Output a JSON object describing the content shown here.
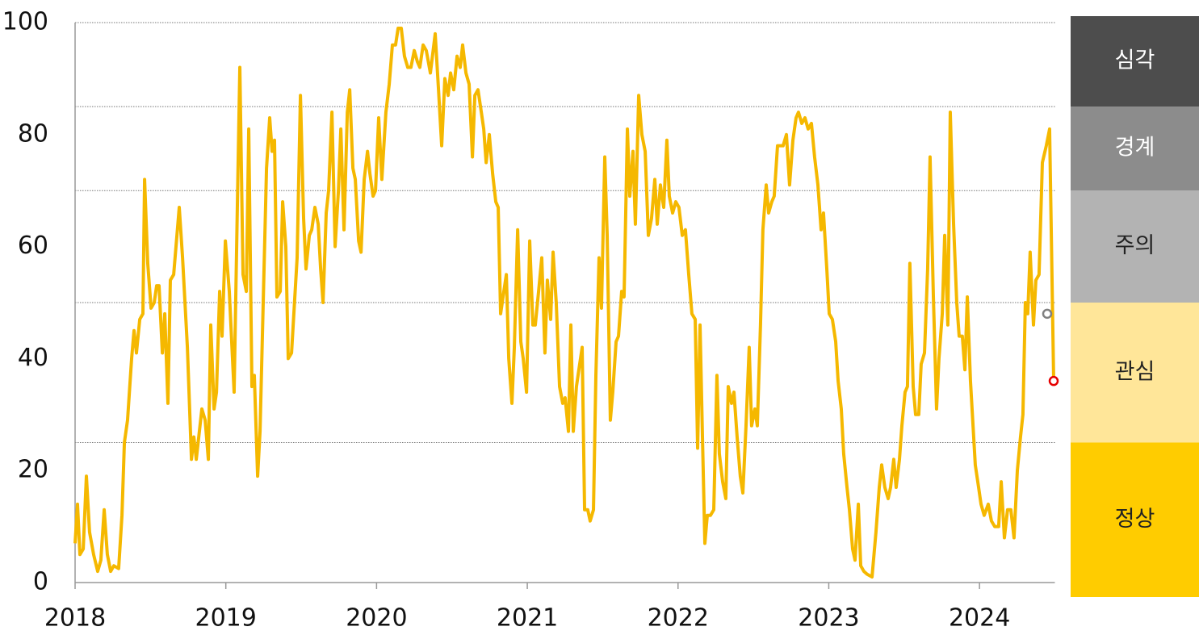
{
  "chart_data": {
    "type": "line",
    "color": "#f5b800",
    "x": [
      2018.0,
      2018.016,
      2018.032,
      2018.054,
      2018.075,
      2018.096,
      2018.123,
      2018.15,
      2018.171,
      2018.193,
      2018.214,
      2018.236,
      2018.257,
      2018.289,
      2018.311,
      2018.327,
      2018.348,
      2018.375,
      2018.391,
      2018.407,
      2018.429,
      2018.45,
      2018.461,
      2018.482,
      2018.504,
      2018.525,
      2018.541,
      2018.557,
      2018.579,
      2018.595,
      2018.616,
      2018.632,
      2018.654,
      2018.691,
      2018.713,
      2018.745,
      2018.772,
      2018.788,
      2018.804,
      2018.841,
      2018.863,
      2018.884,
      2018.9,
      2018.922,
      2018.938,
      2018.959,
      2018.975,
      2018.997,
      2019.023,
      2019.055,
      2019.077,
      2019.093,
      2019.114,
      2019.136,
      2019.152,
      2019.173,
      2019.189,
      2019.211,
      2019.227,
      2019.27,
      2019.291,
      2019.307,
      2019.323,
      2019.339,
      2019.361,
      2019.377,
      2019.398,
      2019.414,
      2019.436,
      2019.473,
      2019.495,
      2019.516,
      2019.532,
      2019.554,
      2019.57,
      2019.591,
      2019.613,
      2019.629,
      2019.645,
      2019.666,
      2019.682,
      2019.704,
      2019.725,
      2019.747,
      2019.763,
      2019.784,
      2019.806,
      2019.822,
      2019.843,
      2019.859,
      2019.881,
      2019.897,
      2019.918,
      2019.94,
      2019.956,
      2019.977,
      2019.993,
      2020.014,
      2020.035,
      2020.062,
      2020.084,
      2020.105,
      2020.126,
      2020.143,
      2020.164,
      2020.185,
      2020.207,
      2020.228,
      2020.25,
      2020.271,
      2020.287,
      2020.309,
      2020.33,
      2020.357,
      2020.389,
      2020.411,
      2020.432,
      2020.453,
      2020.475,
      2020.491,
      2020.512,
      2020.534,
      2020.555,
      2020.571,
      2020.593,
      2020.614,
      2020.636,
      2020.652,
      2020.673,
      2020.695,
      2020.711,
      2020.727,
      2020.748,
      2020.77,
      2020.791,
      2020.807,
      2020.823,
      2020.839,
      2020.861,
      2020.877,
      2020.898,
      2020.914,
      2020.936,
      2020.957,
      2020.973,
      2020.995,
      2021.016,
      2021.037,
      2021.053,
      2021.075,
      2021.096,
      2021.117,
      2021.133,
      2021.155,
      2021.171,
      2021.192,
      2021.214,
      2021.235,
      2021.251,
      2021.273,
      2021.289,
      2021.305,
      2021.326,
      2021.342,
      2021.364,
      2021.38,
      2021.401,
      2021.417,
      2021.439,
      2021.455,
      2021.476,
      2021.492,
      2021.514,
      2021.53,
      2021.551,
      2021.567,
      2021.589,
      2021.605,
      2021.626,
      2021.642,
      2021.664,
      2021.68,
      2021.701,
      2021.717,
      2021.739,
      2021.76,
      2021.782,
      2021.803,
      2021.824,
      2021.846,
      2021.862,
      2021.883,
      2021.905,
      2021.926,
      2021.942,
      2021.964,
      2021.985,
      2022.006,
      2022.028,
      2022.049,
      2022.071,
      2022.092,
      2022.114,
      2022.13,
      2022.146,
      2022.162,
      2022.178,
      2022.194,
      2022.215,
      2022.237,
      2022.258,
      2022.274,
      2022.296,
      2022.317,
      2022.333,
      2022.355,
      2022.371,
      2022.392,
      2022.413,
      2022.43,
      2022.451,
      2022.472,
      2022.488,
      2022.51,
      2022.526,
      2022.547,
      2022.563,
      2022.585,
      2022.601,
      2022.622,
      2022.638,
      2022.66,
      2022.681,
      2022.697,
      2022.719,
      2022.74,
      2022.762,
      2022.783,
      2022.799,
      2022.821,
      2022.842,
      2022.863,
      2022.885,
      2022.906,
      2022.928,
      2022.949,
      2022.965,
      2022.987,
      2023.003,
      2023.024,
      2023.046,
      2023.062,
      2023.083,
      2023.099,
      2023.121,
      2023.137,
      2023.158,
      2023.174,
      2023.196,
      2023.212,
      2023.233,
      2023.254,
      2023.287,
      2023.313,
      2023.335,
      2023.351,
      2023.372,
      2023.394,
      2023.41,
      2023.431,
      2023.447,
      2023.469,
      2023.485,
      2023.506,
      2023.522,
      2023.538,
      2023.56,
      2023.576,
      2023.597,
      2023.613,
      2023.635,
      2023.656,
      2023.672,
      2023.694,
      2023.715,
      2023.731,
      2023.753,
      2023.769,
      2023.79,
      2023.806,
      2023.828,
      2023.849,
      2023.865,
      2023.886,
      2023.903,
      2023.919,
      2023.94,
      2023.972,
      2023.994,
      2024.01,
      2024.031,
      2024.058,
      2024.079,
      2024.101,
      2024.127,
      2024.144,
      2024.165,
      2024.186,
      2024.208,
      2024.229,
      2024.251,
      2024.272,
      2024.288,
      2024.304,
      2024.32,
      2024.336,
      2024.358,
      2024.374,
      2024.395,
      2024.417,
      2024.443,
      2024.465,
      2024.492
    ],
    "values": [
      7,
      14,
      5,
      6,
      19,
      9,
      5,
      2,
      4,
      13,
      5,
      2,
      3,
      2.5,
      12,
      25,
      29,
      40,
      45,
      41,
      47,
      48,
      72,
      57,
      49,
      50,
      53,
      53,
      41,
      48,
      32,
      54,
      55,
      67,
      58,
      42,
      22,
      26,
      22,
      31,
      29,
      22,
      46,
      31,
      34,
      52,
      44,
      61,
      52,
      34,
      68,
      92,
      55,
      52,
      81,
      35,
      37,
      19,
      27,
      74,
      83,
      77,
      79,
      51,
      52,
      68,
      60,
      40,
      41,
      58,
      87,
      65,
      56,
      62,
      63,
      67,
      64,
      56,
      50,
      66,
      70,
      84,
      60,
      70,
      81,
      63,
      84,
      88,
      74,
      72,
      61,
      59,
      72,
      77,
      73,
      69,
      70,
      83,
      72,
      84,
      89,
      96,
      96,
      99,
      99,
      94,
      92,
      92,
      95,
      93,
      92,
      96,
      95,
      91,
      98,
      88,
      78,
      90,
      87,
      91,
      88,
      94,
      92,
      96,
      91,
      89,
      76,
      87,
      88,
      84,
      81,
      75,
      80,
      73,
      68,
      67,
      48,
      51,
      55,
      40,
      32,
      42,
      63,
      43,
      40,
      34,
      61,
      46,
      46,
      52,
      58,
      41,
      54,
      47,
      59,
      50,
      35,
      32,
      33,
      27,
      46,
      27,
      35,
      38,
      42,
      13,
      13,
      11,
      13,
      37,
      58,
      49,
      76,
      62,
      29,
      34,
      43,
      44,
      52,
      51,
      81,
      69,
      77,
      64,
      87,
      80,
      77,
      62,
      65,
      72,
      64,
      71,
      67,
      79,
      69,
      66,
      68,
      67,
      62,
      63,
      55,
      48,
      47,
      24,
      46,
      26,
      7,
      12,
      12,
      13,
      37,
      23,
      18,
      15,
      35,
      32,
      34,
      26,
      19,
      16,
      28,
      42,
      28,
      31,
      28,
      46,
      63,
      71,
      66,
      68,
      69,
      78,
      78,
      78,
      80,
      71,
      79,
      83,
      84,
      82,
      83,
      81,
      82,
      76,
      71,
      63,
      66,
      56,
      48,
      47,
      43,
      36,
      31,
      23,
      17,
      13,
      6,
      4,
      14,
      3,
      2,
      1.5,
      1,
      9,
      17,
      21,
      17,
      15,
      17,
      22,
      17,
      22,
      28,
      34,
      35,
      57,
      35,
      30,
      30,
      39,
      41,
      56,
      76,
      51,
      31,
      40,
      48,
      62,
      46,
      84,
      64,
      50,
      44,
      44,
      38,
      51,
      36,
      21,
      17,
      14,
      12,
      14,
      11,
      10,
      10,
      18,
      8,
      13,
      13,
      8,
      20,
      26,
      30,
      50,
      48,
      59,
      46,
      54,
      55,
      75,
      78,
      81,
      36
    ],
    "xlim": [
      2018,
      2024.5
    ],
    "xticks": [
      2018,
      2019,
      2020,
      2021,
      2022,
      2023,
      2024
    ],
    "ylim": [
      0,
      100
    ],
    "yticks": [
      0,
      20,
      40,
      60,
      80,
      100
    ],
    "markers": [
      {
        "x": 2024.449,
        "y": 48,
        "color": "#808080"
      },
      {
        "x": 2024.492,
        "y": 36,
        "color": "#e60000"
      }
    ],
    "zones": [
      {
        "label": "정상",
        "from": 0,
        "to": 25,
        "color": "#ffcc00",
        "label_color": "#222222"
      },
      {
        "label": "관심",
        "from": 25,
        "to": 50,
        "color": "#ffe699",
        "label_color": "#222222"
      },
      {
        "label": "주의",
        "from": 50,
        "to": 70,
        "color": "#b3b3b3",
        "label_color": "#222222"
      },
      {
        "label": "경계",
        "from": 70,
        "to": 85,
        "color": "#8c8c8c",
        "label_color": "#ffffff"
      },
      {
        "label": "심각",
        "from": 85,
        "to": 100,
        "color": "#4d4d4d",
        "label_color": "#ffffff"
      }
    ]
  }
}
